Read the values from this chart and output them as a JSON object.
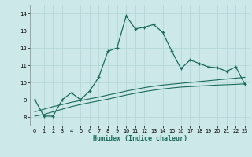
{
  "xlabel": "Humidex (Indice chaleur)",
  "x": [
    0,
    1,
    2,
    3,
    4,
    5,
    6,
    7,
    8,
    9,
    10,
    11,
    12,
    13,
    14,
    15,
    16,
    17,
    18,
    19,
    20,
    21,
    22,
    23
  ],
  "line1_y": [
    9.0,
    8.05,
    8.05,
    9.0,
    9.4,
    9.0,
    9.5,
    10.3,
    11.8,
    12.0,
    13.85,
    13.1,
    13.2,
    13.35,
    12.9,
    11.8,
    10.8,
    11.3,
    11.1,
    10.9,
    10.85,
    10.65,
    10.9,
    9.9
  ],
  "line2_y": [
    8.05,
    8.15,
    8.3,
    8.45,
    8.6,
    8.72,
    8.83,
    8.93,
    9.03,
    9.15,
    9.27,
    9.37,
    9.47,
    9.55,
    9.62,
    9.68,
    9.73,
    9.76,
    9.79,
    9.82,
    9.85,
    9.87,
    9.89,
    9.92
  ],
  "line3_y": [
    8.3,
    8.45,
    8.6,
    8.72,
    8.85,
    8.95,
    9.05,
    9.15,
    9.27,
    9.38,
    9.5,
    9.6,
    9.7,
    9.78,
    9.85,
    9.9,
    9.95,
    10.0,
    10.05,
    10.1,
    10.15,
    10.2,
    10.25,
    10.3
  ],
  "line_color": "#1a6b5a",
  "bg_color": "#cce8e8",
  "grid_color": "#b0d5d5",
  "ylim": [
    7.5,
    14.5
  ],
  "xlim": [
    -0.5,
    23.5
  ],
  "yticks": [
    8,
    9,
    10,
    11,
    12,
    13,
    14
  ],
  "xticks": [
    0,
    1,
    2,
    3,
    4,
    5,
    6,
    7,
    8,
    9,
    10,
    11,
    12,
    13,
    14,
    15,
    16,
    17,
    18,
    19,
    20,
    21,
    22,
    23
  ]
}
